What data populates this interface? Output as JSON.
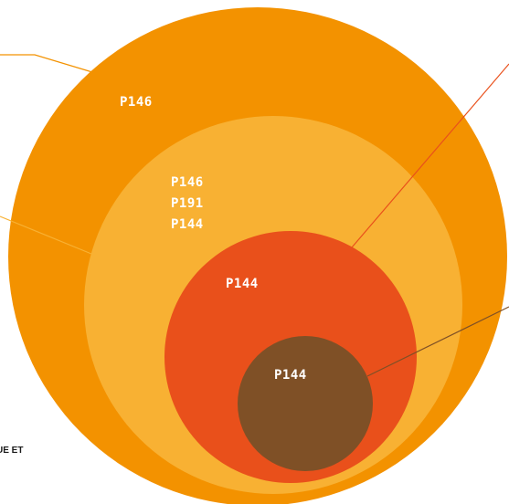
{
  "nodes": [
    {
      "labels": [
        "P146"
      ]
    },
    {
      "labels": [
        "P146",
        "P191",
        "P144"
      ]
    },
    {
      "labels": [
        "P144"
      ]
    },
    {
      "labels": [
        "P144"
      ]
    }
  ],
  "caption": "UE ET"
}
